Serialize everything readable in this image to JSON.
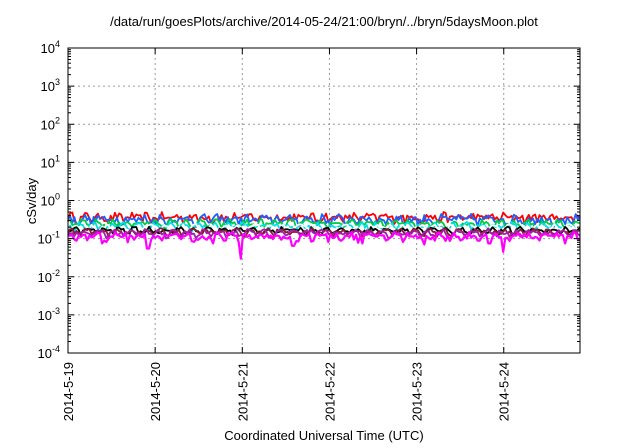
{
  "chart_data": {
    "type": "line",
    "title": "/data/run/goesPlots/archive/2014-05-24/21:00/bryn/../bryn/5daysMoon.plot",
    "xlabel": "Coordinated Universal Time (UTC)",
    "ylabel": "cSv/day",
    "yscale": "log",
    "ylim": [
      0.0001,
      10000
    ],
    "xlim": [
      "2014-05-19",
      "2014-05-24 21:00"
    ],
    "grid": true,
    "x_ticks": [
      "2014-5-19",
      "2014-5-20",
      "2014-5-21",
      "2014-5-22",
      "2014-5-23",
      "2014-5-24"
    ],
    "y_ticks": [
      {
        "value": 0.0001,
        "base": "10",
        "exp": "-4"
      },
      {
        "value": 0.001,
        "base": "10",
        "exp": "-3"
      },
      {
        "value": 0.01,
        "base": "10",
        "exp": "-2"
      },
      {
        "value": 0.1,
        "base": "10",
        "exp": "-1"
      },
      {
        "value": 1,
        "base": "10",
        "exp": "0"
      },
      {
        "value": 10,
        "base": "10",
        "exp": "1"
      },
      {
        "value": 100,
        "base": "10",
        "exp": "2"
      },
      {
        "value": 1000,
        "base": "10",
        "exp": "3"
      },
      {
        "value": 10000,
        "base": "10",
        "exp": "4"
      }
    ],
    "series": [
      {
        "color": "#ff0000",
        "base": 0.36,
        "noise": 0.12
      },
      {
        "color": "#1f5fff",
        "base": 0.32,
        "noise": 0.11
      },
      {
        "color": "#00cc44",
        "base": 0.25,
        "noise": 0.06
      },
      {
        "color": "#00e0e0",
        "base": 0.21,
        "noise": 0.05
      },
      {
        "color": "#ffffff",
        "base": 0.19,
        "noise": 0.04
      },
      {
        "color": "#000000",
        "base": 0.165,
        "noise": 0.03
      },
      {
        "color": "#8b1a3a",
        "base": 0.15,
        "noise": 0.03
      },
      {
        "color": "#a020a0",
        "base": 0.14,
        "noise": 0.03
      },
      {
        "color": "#ff00ff",
        "base": 0.115,
        "noise": 0.03,
        "dips": [
          {
            "date": "2014-05-19 09:30",
            "value": 0.075
          },
          {
            "date": "2014-05-19 16:30",
            "value": 0.08
          },
          {
            "date": "2014-05-19 22:00",
            "value": 0.055
          },
          {
            "date": "2014-05-20 16:00",
            "value": 0.075
          },
          {
            "date": "2014-05-20 23:40",
            "value": 0.03
          },
          {
            "date": "2014-05-21 14:00",
            "value": 0.065
          },
          {
            "date": "2014-05-22 09:00",
            "value": 0.075
          },
          {
            "date": "2014-05-23 02:00",
            "value": 0.07
          },
          {
            "date": "2014-05-23 20:00",
            "value": 0.075
          },
          {
            "date": "2014-05-24 00:00",
            "value": 0.045
          },
          {
            "date": "2014-05-24 17:00",
            "value": 0.075
          }
        ]
      }
    ]
  }
}
